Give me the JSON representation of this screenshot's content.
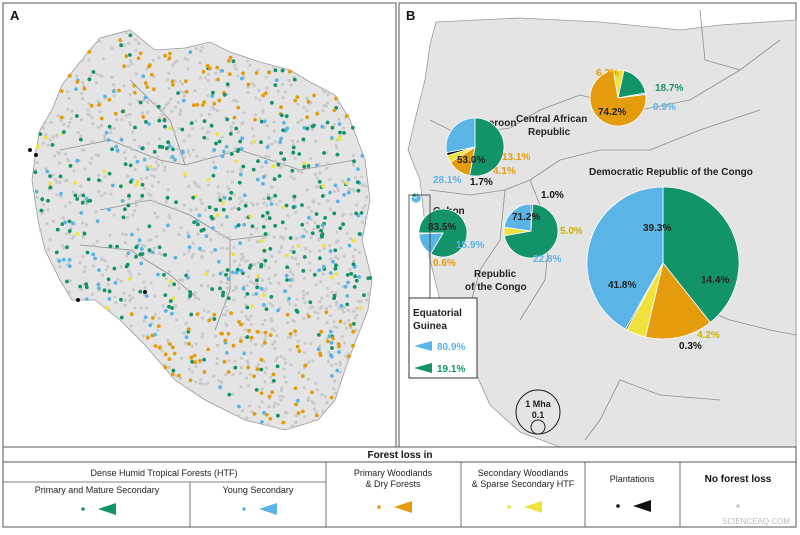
{
  "panels": {
    "a_label": "A",
    "b_label": "B"
  },
  "colors": {
    "primary": "#12936a",
    "young": "#5ab4e6",
    "woodland": "#e49c0c",
    "sparse": "#f0e23c",
    "plantation": "#111111",
    "no_loss": "#c9c9c9",
    "land": "#e4e4e4",
    "border": "#8c8c8c"
  },
  "countries": {
    "cameroon": "Cameroon",
    "car_line1": "Central African",
    "car_line2": "Republic",
    "drc": "Democratic Republic of the Congo",
    "gabon": "Gabon",
    "roc_line1": "Republic",
    "roc_line2": "of the Congo",
    "eqg_line1": "Equatorial",
    "eqg_line2": "Guinea"
  },
  "pies": {
    "car": {
      "woodland": "74.2%",
      "primary": "18.7%",
      "young": "0.9%",
      "sparse": "6.2%"
    },
    "cameroon": {
      "primary": "53.0%",
      "young": "28.1%",
      "woodland": "13.1%",
      "sparse": "4.1%",
      "plantation": "1.7%"
    },
    "drc": {
      "primary": "39.3%",
      "young": "41.8%",
      "woodland": "14.4%",
      "sparse": "4.2%",
      "plantation": "0.3%"
    },
    "roc": {
      "primary": "71.2%",
      "young": "22.8%",
      "sparse": "5.0%",
      "plantation": "1.0%"
    },
    "gabon": {
      "primary": "83.5%",
      "young": "15.9%",
      "woodland": "0.6%"
    },
    "eqg": {
      "young": "80.9%",
      "primary": "19.1%"
    }
  },
  "scale": {
    "big": "1 Mha",
    "small": "0.1"
  },
  "legend": {
    "title": "Forest loss in",
    "htf_group": "Dense Humid Tropical Forests (HTF)",
    "primary": "Primary and Mature Secondary",
    "young": "Young Secondary",
    "woodland_line1": "Primary Woodlands",
    "woodland_line2": "& Dry Forests",
    "sparse_line1": "Secondary Woodlands",
    "sparse_line2": "& Sparse Secondary HTF",
    "plantations": "Plantations",
    "no_loss": "No forest loss"
  },
  "watermark": "SCIENCEAQ.COM"
}
